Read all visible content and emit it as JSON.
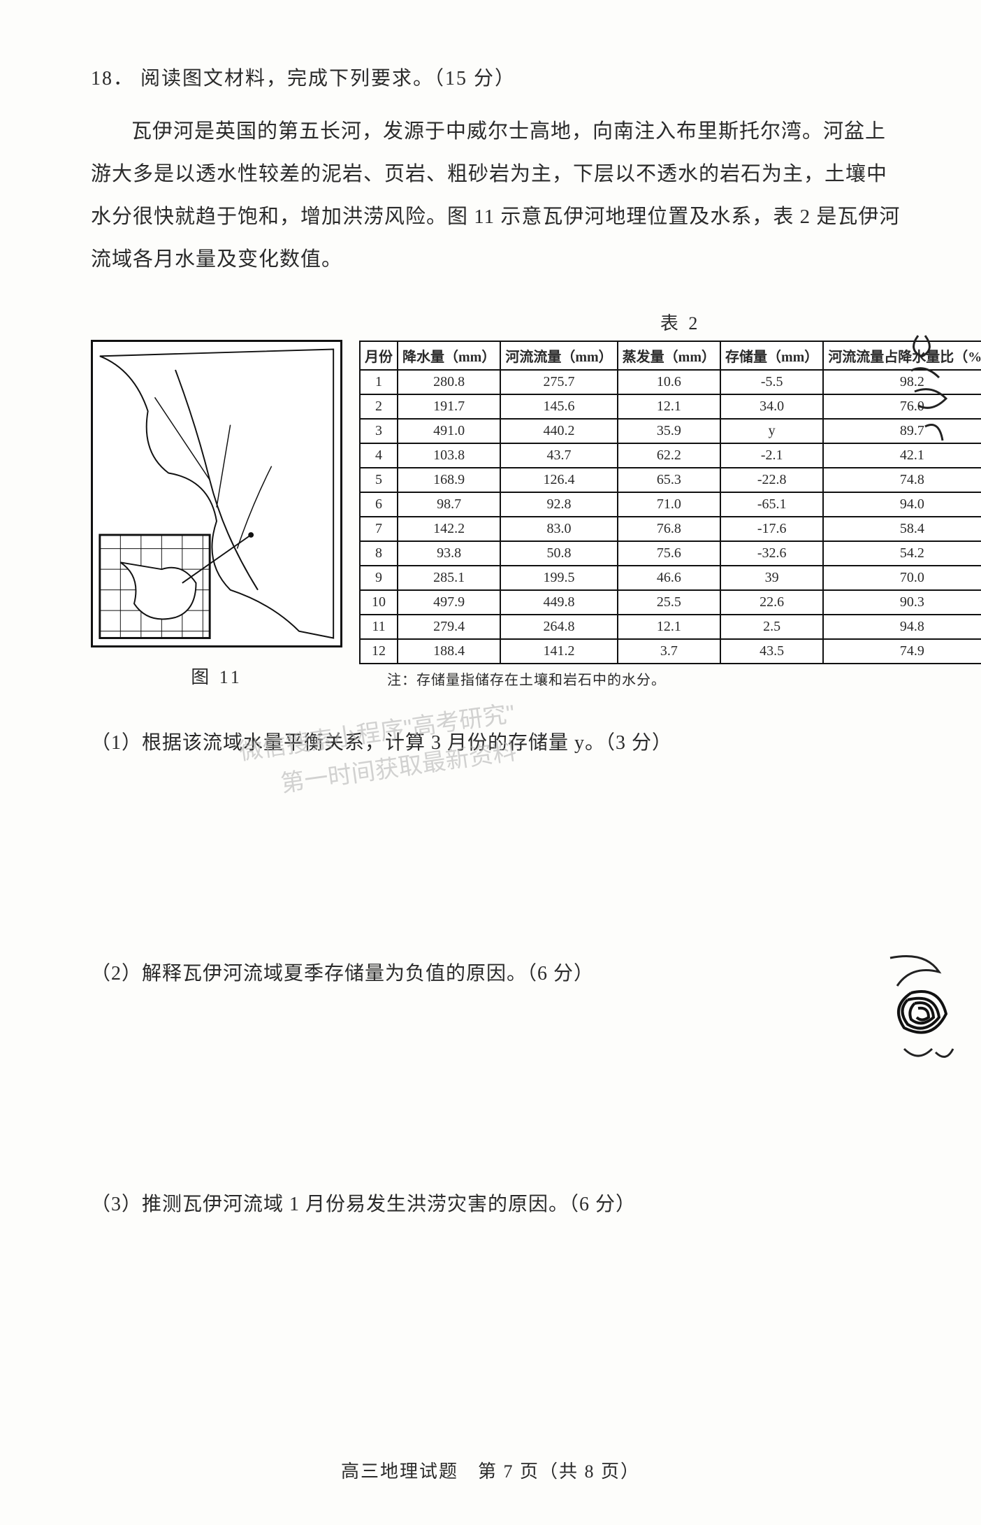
{
  "question": {
    "number": "18．",
    "stem": "阅读图文材料，完成下列要求。（15 分）",
    "intro": "瓦伊河是英国的第五长河，发源于中威尔士高地，向南注入布里斯托尔湾。河盆上游大多是以透水性较差的泥岩、页岩、粗砂岩为主，下层以不透水的岩石为主，土壤中水分很快就趋于饱和，增加洪涝风险。图 11 示意瓦伊河地理位置及水系，表 2 是瓦伊河流域各月水量及变化数值。"
  },
  "figure": {
    "caption": "图 11"
  },
  "table": {
    "title": "表 2",
    "columns": [
      "月份",
      "降水量（mm）",
      "河流流量（mm）",
      "蒸发量（mm）",
      "存储量（mm）",
      "河流流量占降水量比（%）"
    ],
    "rows": [
      [
        "1",
        "280.8",
        "275.7",
        "10.6",
        "-5.5",
        "98.2"
      ],
      [
        "2",
        "191.7",
        "145.6",
        "12.1",
        "34.0",
        "76.0"
      ],
      [
        "3",
        "491.0",
        "440.2",
        "35.9",
        "y",
        "89.7"
      ],
      [
        "4",
        "103.8",
        "43.7",
        "62.2",
        "-2.1",
        "42.1"
      ],
      [
        "5",
        "168.9",
        "126.4",
        "65.3",
        "-22.8",
        "74.8"
      ],
      [
        "6",
        "98.7",
        "92.8",
        "71.0",
        "-65.1",
        "94.0"
      ],
      [
        "7",
        "142.2",
        "83.0",
        "76.8",
        "-17.6",
        "58.4"
      ],
      [
        "8",
        "93.8",
        "50.8",
        "75.6",
        "-32.6",
        "54.2"
      ],
      [
        "9",
        "285.1",
        "199.5",
        "46.6",
        "39",
        "70.0"
      ],
      [
        "10",
        "497.9",
        "449.8",
        "25.5",
        "22.6",
        "90.3"
      ],
      [
        "11",
        "279.4",
        "264.8",
        "12.1",
        "2.5",
        "94.8"
      ],
      [
        "12",
        "188.4",
        "141.2",
        "3.7",
        "43.5",
        "74.9"
      ]
    ],
    "note": "注：存储量指储存在土壤和岩石中的水分。"
  },
  "subquestions": {
    "q1": "（1）根据该流域水量平衡关系，计算 3 月份的存储量 y。（3 分）",
    "q2": "（2）解释瓦伊河流域夏季存储量为负值的原因。（6 分）",
    "q3": "（3）推测瓦伊河流域 1 月份易发生洪涝灾害的原因。（6 分）"
  },
  "watermark": {
    "line1": "微信搜索小程序\"高考研究\"",
    "line2": "第一时间获取最新资料"
  },
  "footer": "高三地理试题　第 7 页（共 8 页）",
  "colors": {
    "page_bg": "#fdfdfb",
    "text": "#2a2a2a",
    "border": "#111111",
    "watermark": "rgba(180,180,180,0.6)"
  }
}
